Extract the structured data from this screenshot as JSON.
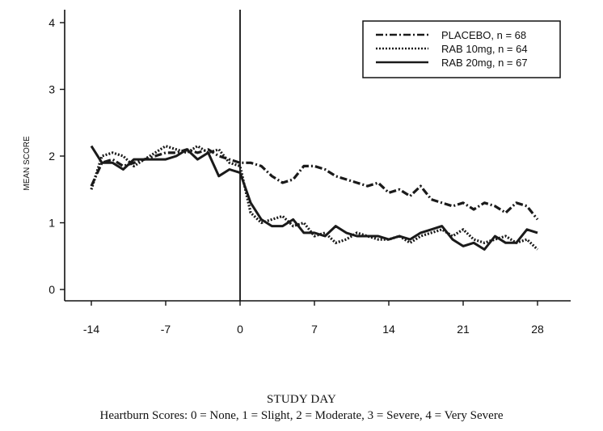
{
  "chart_data": {
    "type": "line",
    "title": "",
    "xlabel": "STUDY DAY",
    "ylabel": "MEAN SCORE",
    "caption": "Heartburn Scores: 0 = None, 1 = Slight, 2 = Moderate, 3 = Severe, 4 = Very Severe",
    "xlim": [
      -14,
      28
    ],
    "ylim": [
      0,
      4
    ],
    "xticks": [
      -14,
      -7,
      0,
      7,
      14,
      21,
      28
    ],
    "yticks": [
      0,
      1,
      2,
      3,
      4
    ],
    "reference_line_x": 0,
    "grid": false,
    "legend_position": "top-right",
    "series": [
      {
        "name": "PLACEBO, n = 68",
        "style": "dash-dot",
        "x": [
          -14,
          -13,
          -12,
          -11,
          -10,
          -9,
          -8,
          -7,
          -6,
          -5,
          -4,
          -3,
          -2,
          -1,
          0,
          1,
          2,
          3,
          4,
          5,
          6,
          7,
          8,
          9,
          10,
          11,
          12,
          13,
          14,
          15,
          16,
          17,
          18,
          19,
          20,
          21,
          22,
          23,
          24,
          25,
          26,
          27,
          28
        ],
        "y": [
          1.55,
          1.9,
          1.95,
          1.85,
          1.9,
          1.95,
          2.0,
          2.05,
          2.05,
          2.1,
          2.05,
          2.1,
          2.0,
          1.95,
          1.9,
          1.9,
          1.85,
          1.7,
          1.6,
          1.65,
          1.85,
          1.85,
          1.8,
          1.7,
          1.65,
          1.6,
          1.55,
          1.6,
          1.45,
          1.5,
          1.4,
          1.55,
          1.35,
          1.3,
          1.25,
          1.3,
          1.2,
          1.3,
          1.25,
          1.15,
          1.3,
          1.25,
          1.05
        ]
      },
      {
        "name": "RAB 10mg, n = 64",
        "style": "dotted",
        "x": [
          -14,
          -13,
          -12,
          -11,
          -10,
          -9,
          -8,
          -7,
          -6,
          -5,
          -4,
          -3,
          -2,
          -1,
          0,
          1,
          2,
          3,
          4,
          5,
          6,
          7,
          8,
          9,
          10,
          11,
          12,
          13,
          14,
          15,
          16,
          17,
          18,
          19,
          20,
          21,
          22,
          23,
          24,
          25,
          26,
          27,
          28
        ],
        "y": [
          1.5,
          2.0,
          2.05,
          2.0,
          1.85,
          1.95,
          2.05,
          2.15,
          2.1,
          2.05,
          2.15,
          2.05,
          2.1,
          1.9,
          1.85,
          1.15,
          1.0,
          1.05,
          1.1,
          0.95,
          1.0,
          0.8,
          0.85,
          0.7,
          0.75,
          0.85,
          0.8,
          0.75,
          0.75,
          0.8,
          0.7,
          0.8,
          0.85,
          0.9,
          0.8,
          0.9,
          0.75,
          0.7,
          0.75,
          0.8,
          0.7,
          0.75,
          0.6
        ]
      },
      {
        "name": "RAB 20mg, n = 67",
        "style": "solid",
        "x": [
          -14,
          -13,
          -12,
          -11,
          -10,
          -9,
          -8,
          -7,
          -6,
          -5,
          -4,
          -3,
          -2,
          -1,
          0,
          1,
          2,
          3,
          4,
          5,
          6,
          7,
          8,
          9,
          10,
          11,
          12,
          13,
          14,
          15,
          16,
          17,
          18,
          19,
          20,
          21,
          22,
          23,
          24,
          25,
          26,
          27,
          28
        ],
        "y": [
          2.15,
          1.9,
          1.9,
          1.8,
          1.95,
          1.95,
          1.95,
          1.95,
          2.0,
          2.1,
          1.95,
          2.05,
          1.7,
          1.8,
          1.75,
          1.3,
          1.05,
          0.95,
          0.95,
          1.05,
          0.85,
          0.85,
          0.8,
          0.95,
          0.85,
          0.8,
          0.8,
          0.8,
          0.75,
          0.8,
          0.75,
          0.85,
          0.9,
          0.95,
          0.75,
          0.65,
          0.7,
          0.6,
          0.8,
          0.7,
          0.7,
          0.9,
          0.85
        ]
      }
    ]
  }
}
